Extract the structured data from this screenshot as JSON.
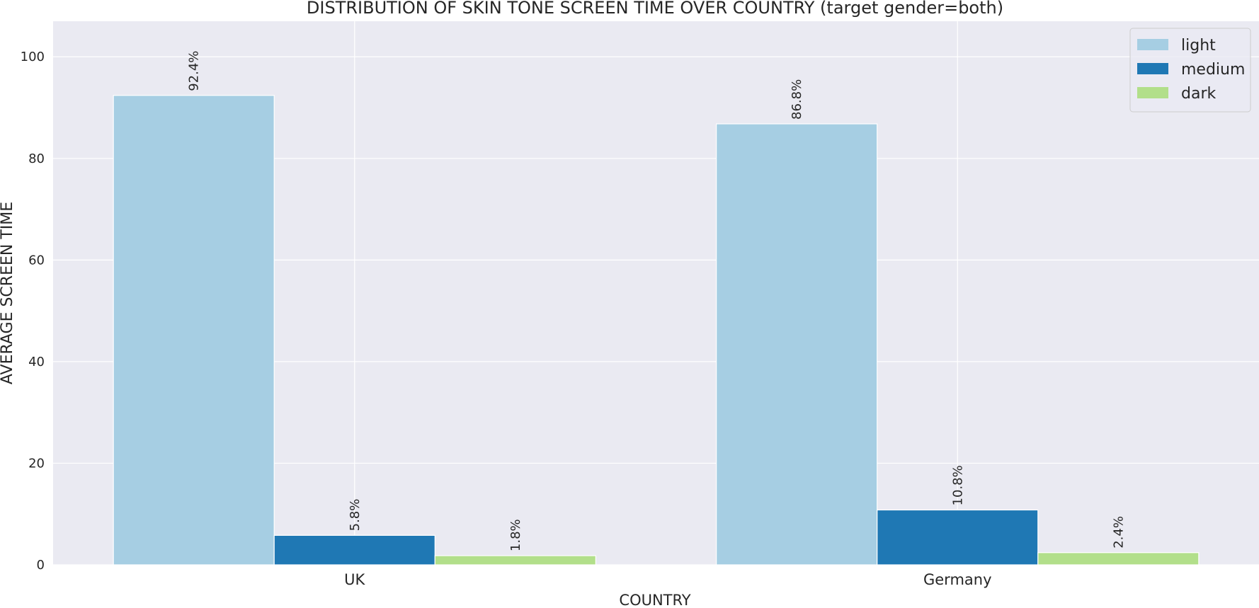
{
  "chart_data": {
    "type": "bar",
    "title": "DISTRIBUTION OF SKIN TONE SCREEN TIME OVER COUNTRY (target gender=both)",
    "xlabel": "COUNTRY",
    "ylabel": "AVERAGE SCREEN TIME",
    "categories": [
      "UK",
      "Germany"
    ],
    "series": [
      {
        "name": "light",
        "color": "#a6cee3",
        "values": [
          92.4,
          86.8
        ],
        "labels": [
          "92.4%",
          "86.8%"
        ]
      },
      {
        "name": "medium",
        "color": "#1f78b4",
        "values": [
          5.8,
          10.8
        ],
        "labels": [
          "5.8%",
          "10.8%"
        ]
      },
      {
        "name": "dark",
        "color": "#b2df8a",
        "values": [
          1.8,
          2.4
        ],
        "labels": [
          "1.8%",
          "2.4%"
        ]
      }
    ],
    "ylim": [
      0,
      107
    ],
    "yticks": [
      0,
      20,
      40,
      60,
      80,
      100
    ],
    "grid": true,
    "legend_position": "top-right",
    "background_color": "#eaeaf2",
    "grid_color": "#ffffff"
  }
}
